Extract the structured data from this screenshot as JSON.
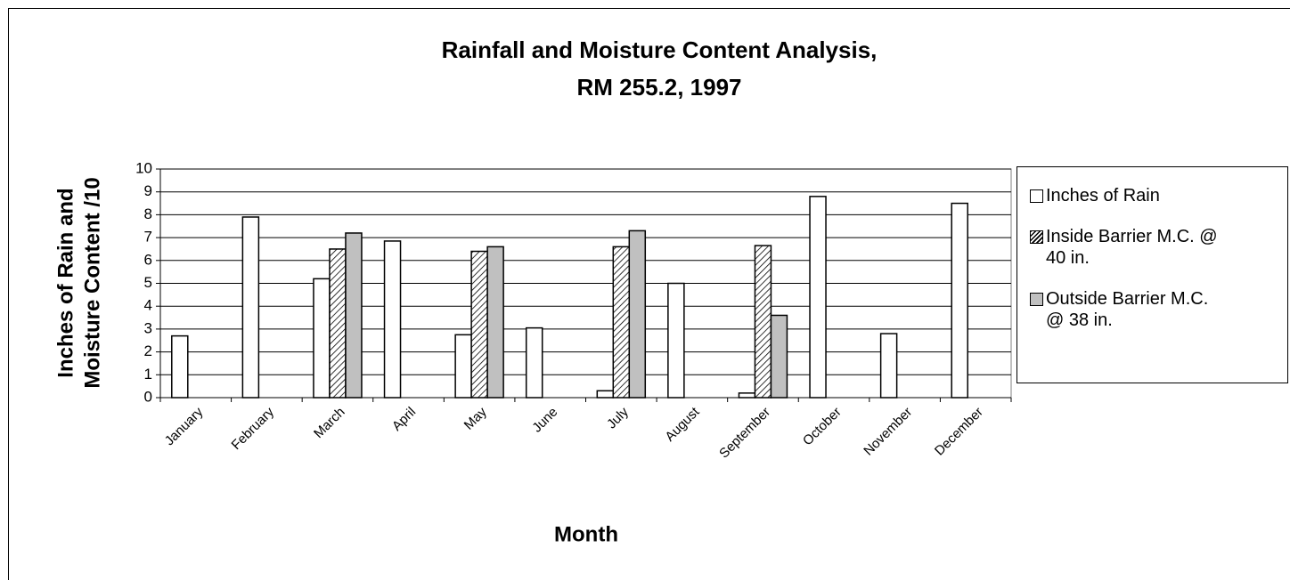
{
  "chart_data": {
    "type": "bar",
    "title": [
      "Rainfall and Moisture Content Analysis,",
      "RM 255.2, 1997"
    ],
    "y_label": [
      "Inches of Rain and",
      "Moisture Content /10"
    ],
    "x_label": "Month",
    "categories": [
      "January",
      "February",
      "March",
      "April",
      "May",
      "June",
      "July",
      "August",
      "September",
      "October",
      "November",
      "December"
    ],
    "series": [
      {
        "name": "Inches of Rain",
        "color": "#ffffff",
        "values": [
          2.7,
          7.9,
          5.2,
          6.85,
          2.75,
          3.05,
          0.3,
          5.0,
          0.2,
          8.8,
          2.8,
          8.5
        ]
      },
      {
        "name": "Inside Barrier M.C. @ 40 in.",
        "color": "#ffffff",
        "pattern": "diagonal-hatch",
        "values": [
          null,
          null,
          6.5,
          null,
          6.4,
          null,
          6.6,
          null,
          6.65,
          null,
          null,
          null
        ]
      },
      {
        "name": "Outside Barrier M.C. @ 38 in.",
        "color": "#c0c0c0",
        "values": [
          null,
          null,
          7.2,
          null,
          6.6,
          null,
          7.3,
          null,
          3.6,
          null,
          null,
          null
        ]
      }
    ],
    "ylim": [
      0,
      10
    ],
    "yticks": [
      0,
      1,
      2,
      3,
      4,
      5,
      6,
      7,
      8,
      9,
      10
    ],
    "grid": true,
    "legend": "right"
  }
}
